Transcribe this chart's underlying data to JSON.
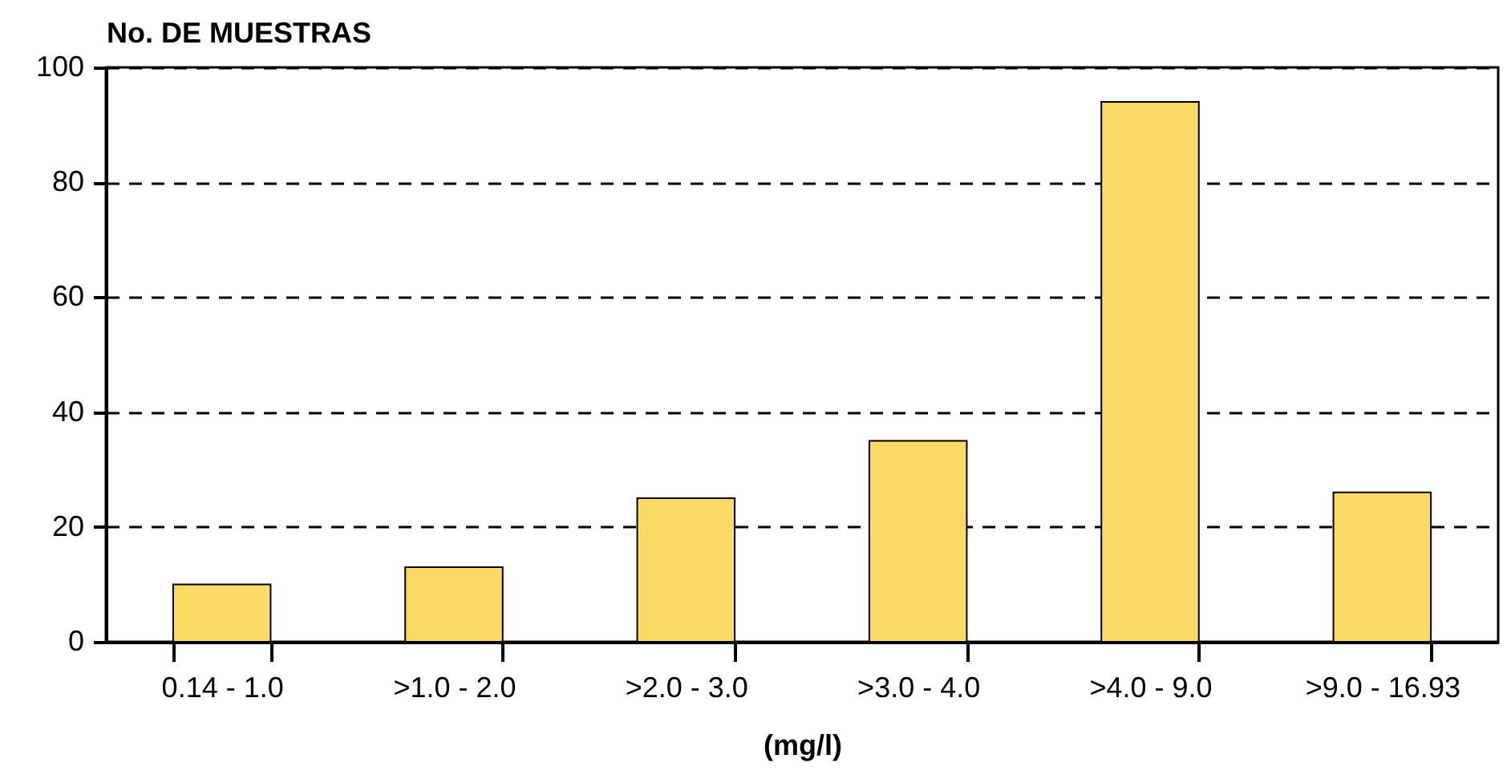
{
  "chart_data": {
    "type": "bar",
    "ylabel": "No. DE MUESTRAS",
    "xlabel": "(mg/l)",
    "categories": [
      "0.14 - 1.0",
      ">1.0 - 2.0",
      ">2.0 - 3.0",
      ">3.0 - 4.0",
      ">4.0 - 9.0",
      ">9.0 - 16.93"
    ],
    "values": [
      10,
      13,
      25,
      35,
      94,
      26
    ],
    "color": "#fdd966",
    "ylim": [
      0,
      100
    ],
    "yticks": [
      0,
      20,
      40,
      60,
      80,
      100
    ],
    "grid": "y"
  }
}
